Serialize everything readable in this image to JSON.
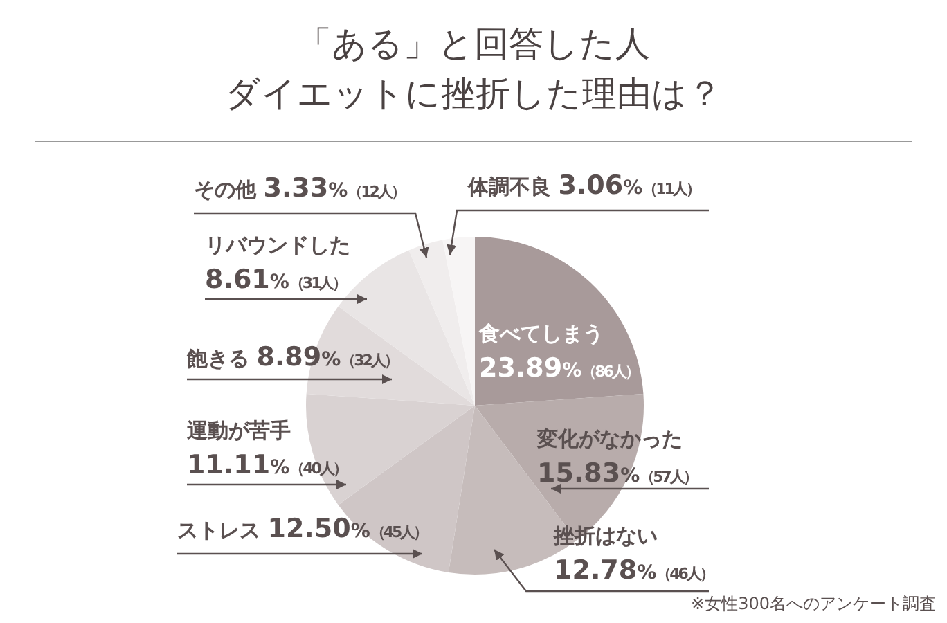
{
  "chart_data": {
    "type": "pie",
    "title": "「ある」と回答した人",
    "subtitle": "ダイエットに挫折した理由は？",
    "categories": [
      "食べてしまう",
      "変化がなかった",
      "挫折はない",
      "ストレス",
      "運動が苦手",
      "飽きる",
      "リバウンドした",
      "その他",
      "体調不良"
    ],
    "values": [
      23.89,
      15.83,
      12.78,
      12.5,
      11.11,
      8.89,
      8.61,
      3.33,
      3.06
    ],
    "value_labels": [
      "23.89%（86人）",
      "15.83%（57人）",
      "12.78%（46人）",
      "12.50%（45人）",
      "11.11%（40人）",
      "8.89%（32人）",
      "8.61%（31人）",
      "3.33%（12人）",
      "3.06%（11人）"
    ],
    "colors": [
      "#a89a9a",
      "#b8acab",
      "#c6bcbb",
      "#cfc6c6",
      "#d9d2d2",
      "#e1dbdb",
      "#e9e5e5",
      "#f0eded",
      "#f7f5f5"
    ],
    "annotations": [
      "※女性300名へのアンケート調査"
    ]
  }
}
